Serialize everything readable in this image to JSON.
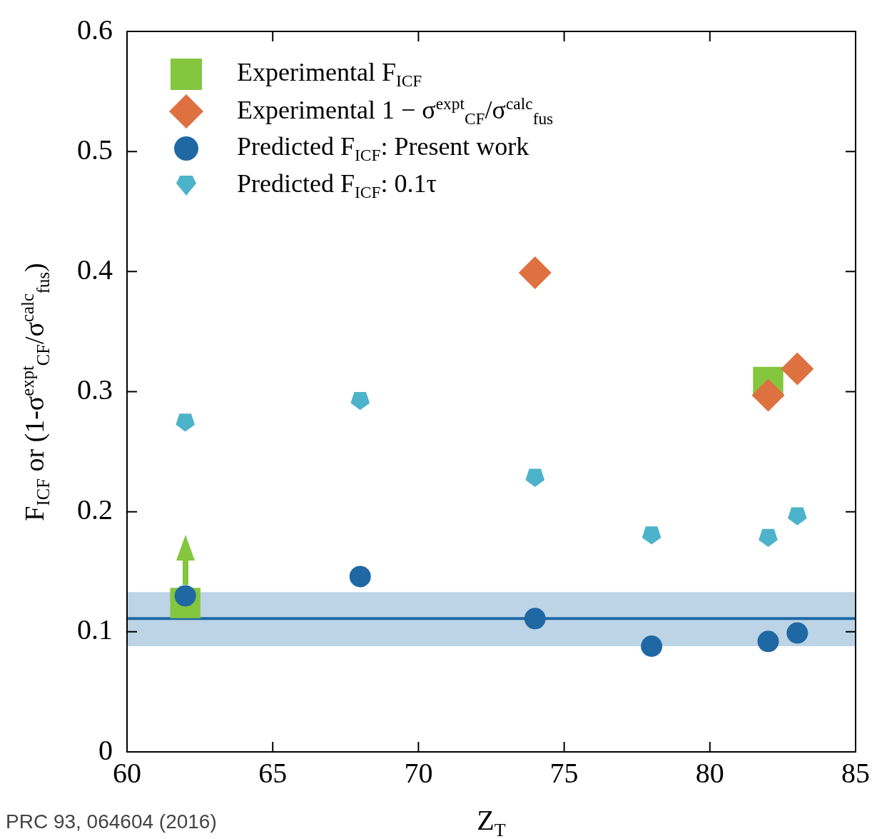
{
  "chart_data": {
    "type": "scatter",
    "xlabel": "Z$_{T}$",
    "ylabel": "F$_{ICF}$ or (1-σ$^{expt}$$_{CF}$/σ$^{calc}$$_{fus}$)",
    "xlim": [
      60,
      85
    ],
    "xticks": [
      60,
      65,
      70,
      75,
      80,
      85
    ],
    "ylim": [
      0,
      0.6
    ],
    "yticks": [
      0,
      0.1,
      0.2,
      0.3,
      0.4,
      0.5,
      0.6
    ],
    "grid": false,
    "legend": "top left",
    "series": [
      {
        "name": "Experimental F$_{ICF}$",
        "color": "#84c63e",
        "marker": "square",
        "x": [
          62,
          82
        ],
        "values": [
          0.124,
          0.308
        ]
      },
      {
        "name": "Experimental 1 − σ$^{expt}$$_{CF}$/σ$^{calc}$$_{fus}$",
        "color": "#dd7140",
        "marker": "diamond",
        "x": [
          74,
          82,
          83
        ],
        "values": [
          0.399,
          0.297,
          0.319
        ]
      },
      {
        "name": "Predicted F$_{ICF}$:  Present work",
        "color": "#1f68a3",
        "marker": "circle",
        "x": [
          62,
          68,
          74,
          78,
          82,
          83
        ],
        "values": [
          0.13,
          0.146,
          0.111,
          0.088,
          0.092,
          0.099
        ]
      },
      {
        "name": "Predicted F$_{ICF}$: 0.1τ",
        "color": "#4db3ca",
        "x": [
          62,
          68,
          74,
          78,
          82,
          83
        ],
        "values": [
          0.275,
          0.293,
          0.229,
          0.181,
          0.179,
          0.197
        ]
      }
    ],
    "ref_lines": [
      {
        "axis": "y",
        "value": 0.111,
        "color": "#1f68a3"
      }
    ],
    "bands": [
      {
        "axis": "y",
        "from": 0.088,
        "to": 0.133,
        "color": "#bcd4e6"
      }
    ],
    "annotations": [
      "PRC 93, 064604 (2016)"
    ]
  }
}
